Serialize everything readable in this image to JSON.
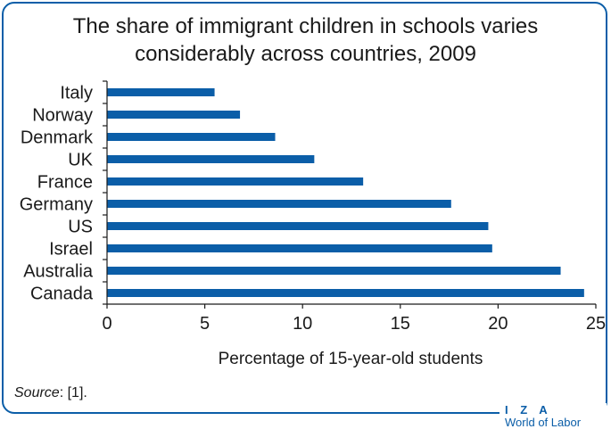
{
  "title_lines": [
    "The share of immigrant children in schools varies",
    "considerably across countries, 2009"
  ],
  "source": {
    "label": "Source",
    "text": ": [1]."
  },
  "logo": {
    "line1": "I Z A",
    "line2": "World of Labor"
  },
  "colors": {
    "bar": "#0b5ea8",
    "frame": "#0b5ea8",
    "axis": "#1a1a1a"
  },
  "chart_data": {
    "type": "bar",
    "orientation": "horizontal",
    "categories": [
      "Italy",
      "Norway",
      "Denmark",
      "UK",
      "France",
      "Germany",
      "US",
      "Israel",
      "Australia",
      "Canada"
    ],
    "values": [
      5.5,
      6.8,
      8.6,
      10.6,
      13.1,
      17.6,
      19.5,
      19.7,
      23.2,
      24.4
    ],
    "xlabel": "Percentage of 15-year-old students",
    "xlim": [
      0,
      25
    ],
    "xticks": [
      0,
      5,
      10,
      15,
      20,
      25
    ],
    "grid": false,
    "legend": "none"
  }
}
